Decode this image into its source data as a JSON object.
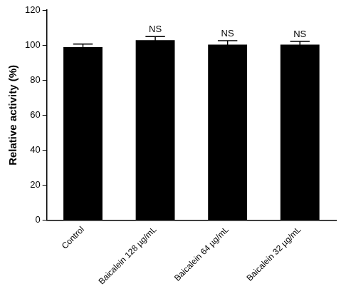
{
  "chart_data": {
    "type": "bar",
    "y_label": "Relative activity (%)",
    "categories": [
      "Control",
      "Baicalein 128 µg/mL",
      "Baicalein 64 µg/mL",
      "Baicalein 32 µg/mL"
    ],
    "values": [
      98.8,
      102.8,
      100.3,
      100.3
    ],
    "errors": [
      1.8,
      2.0,
      2.2,
      1.8
    ],
    "annotations": [
      null,
      "NS",
      "NS",
      "NS"
    ],
    "color": "#000000",
    "ylim": [
      0,
      120
    ],
    "yticks": [
      0,
      20,
      40,
      60,
      80,
      100,
      120
    ],
    "grid": false
  }
}
